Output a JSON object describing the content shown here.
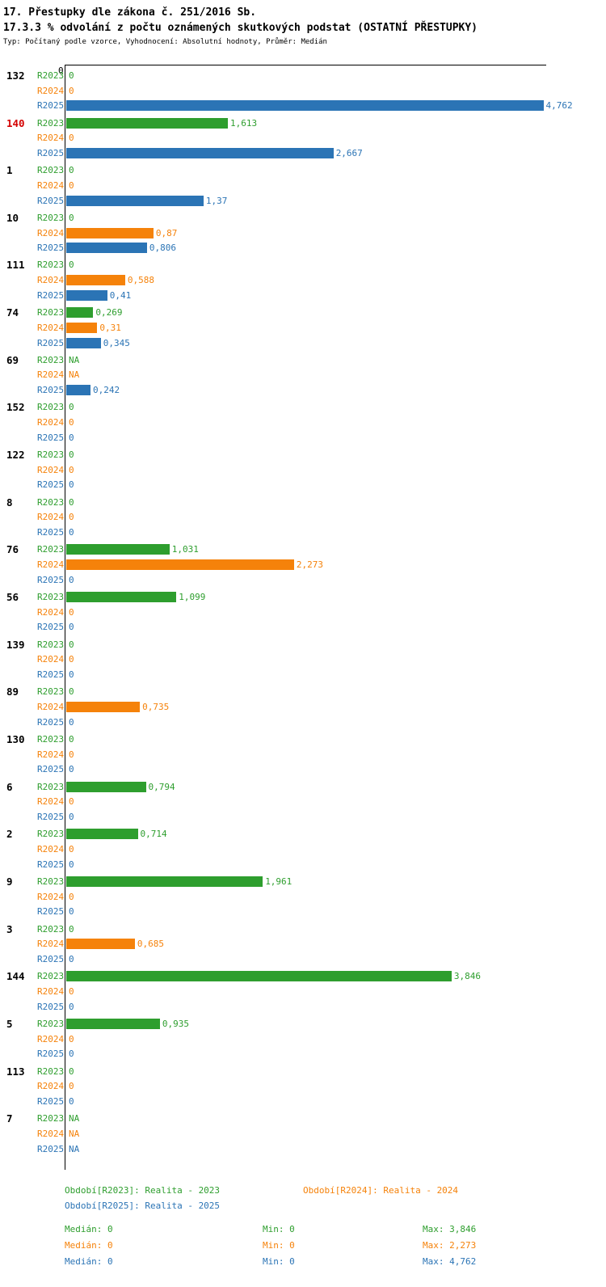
{
  "title": "17. Přestupky dle zákona č. 251/2016 Sb.",
  "subtitle": "17.3.3 % odvolání z počtu oznámených skutkových podstat (OSTATNÍ PŘESTUPKY)",
  "meta": "Typ: Počítaný podle vzorce, Vyhodnocení: Absolutní hodnoty, Průměr: Medián",
  "axis": {
    "zero_label": "0"
  },
  "colors": {
    "r2023_green": "#2e9e2e",
    "r2024_orange": "#f5820a",
    "r2025_blue": "#2b74b5",
    "highlight_red": "#d40000",
    "axis_black": "#000000"
  },
  "chart_data": {
    "type": "bar",
    "orientation": "horizontal",
    "xlim": [
      0,
      4.762
    ],
    "grid": false,
    "series_names": [
      "R2023",
      "R2024",
      "R2025"
    ],
    "series_colors": [
      "#2e9e2e",
      "#f5820a",
      "#2b74b5"
    ],
    "groups": [
      {
        "category": "132",
        "highlight": false,
        "values": [
          0,
          0,
          4.762
        ],
        "labels": [
          "0",
          "0",
          "4,762"
        ]
      },
      {
        "category": "140",
        "highlight": true,
        "values": [
          1.613,
          0,
          2.667
        ],
        "labels": [
          "1,613",
          "0",
          "2,667"
        ]
      },
      {
        "category": "1",
        "highlight": false,
        "values": [
          0,
          0,
          1.37
        ],
        "labels": [
          "0",
          "0",
          "1,37"
        ]
      },
      {
        "category": "10",
        "highlight": false,
        "values": [
          0,
          0.87,
          0.806
        ],
        "labels": [
          "0",
          "0,87",
          "0,806"
        ]
      },
      {
        "category": "111",
        "highlight": false,
        "values": [
          0,
          0.588,
          0.41
        ],
        "labels": [
          "0",
          "0,588",
          "0,41"
        ]
      },
      {
        "category": "74",
        "highlight": false,
        "values": [
          0.269,
          0.31,
          0.345
        ],
        "labels": [
          "0,269",
          "0,31",
          "0,345"
        ]
      },
      {
        "category": "69",
        "highlight": false,
        "values": [
          null,
          null,
          0.242
        ],
        "labels": [
          "NA",
          "NA",
          "0,242"
        ]
      },
      {
        "category": "152",
        "highlight": false,
        "values": [
          0,
          0,
          0
        ],
        "labels": [
          "0",
          "0",
          "0"
        ]
      },
      {
        "category": "122",
        "highlight": false,
        "values": [
          0,
          0,
          0
        ],
        "labels": [
          "0",
          "0",
          "0"
        ]
      },
      {
        "category": "8",
        "highlight": false,
        "values": [
          0,
          0,
          0
        ],
        "labels": [
          "0",
          "0",
          "0"
        ]
      },
      {
        "category": "76",
        "highlight": false,
        "values": [
          1.031,
          2.273,
          0
        ],
        "labels": [
          "1,031",
          "2,273",
          "0"
        ]
      },
      {
        "category": "56",
        "highlight": false,
        "values": [
          1.099,
          0,
          0
        ],
        "labels": [
          "1,099",
          "0",
          "0"
        ]
      },
      {
        "category": "139",
        "highlight": false,
        "values": [
          0,
          0,
          0
        ],
        "labels": [
          "0",
          "0",
          "0"
        ]
      },
      {
        "category": "89",
        "highlight": false,
        "values": [
          0,
          0.735,
          0
        ],
        "labels": [
          "0",
          "0,735",
          "0"
        ]
      },
      {
        "category": "130",
        "highlight": false,
        "values": [
          0,
          0,
          0
        ],
        "labels": [
          "0",
          "0",
          "0"
        ]
      },
      {
        "category": "6",
        "highlight": false,
        "values": [
          0.794,
          0,
          0
        ],
        "labels": [
          "0,794",
          "0",
          "0"
        ]
      },
      {
        "category": "2",
        "highlight": false,
        "values": [
          0.714,
          0,
          0
        ],
        "labels": [
          "0,714",
          "0",
          "0"
        ]
      },
      {
        "category": "9",
        "highlight": false,
        "values": [
          1.961,
          0,
          0
        ],
        "labels": [
          "1,961",
          "0",
          "0"
        ]
      },
      {
        "category": "3",
        "highlight": false,
        "values": [
          0,
          0.685,
          0
        ],
        "labels": [
          "0",
          "0,685",
          "0"
        ]
      },
      {
        "category": "144",
        "highlight": false,
        "values": [
          3.846,
          0,
          0
        ],
        "labels": [
          "3,846",
          "0",
          "0"
        ]
      },
      {
        "category": "5",
        "highlight": false,
        "values": [
          0.935,
          0,
          0
        ],
        "labels": [
          "0,935",
          "0",
          "0"
        ]
      },
      {
        "category": "113",
        "highlight": false,
        "values": [
          0,
          0,
          0
        ],
        "labels": [
          "0",
          "0",
          "0"
        ]
      },
      {
        "category": "7",
        "highlight": false,
        "values": [
          null,
          null,
          null
        ],
        "labels": [
          "NA",
          "NA",
          "NA"
        ]
      }
    ]
  },
  "legend": {
    "row1": [
      {
        "label": "Období[R2023]: Realita - 2023",
        "color": "#2e9e2e"
      },
      {
        "label": "Období[R2024]: Realita - 2024",
        "color": "#f5820a"
      }
    ],
    "row2": [
      {
        "label": "Období[R2025]: Realita - 2025",
        "color": "#2b74b5"
      }
    ]
  },
  "stats": [
    {
      "color": "#2e9e2e",
      "median": "Medián: 0",
      "min": "Min: 0",
      "max": "Max: 3,846"
    },
    {
      "color": "#f5820a",
      "median": "Medián: 0",
      "min": "Min: 0",
      "max": "Max: 2,273"
    },
    {
      "color": "#2b74b5",
      "median": "Medián: 0",
      "min": "Min: 0",
      "max": "Max: 4,762"
    }
  ]
}
